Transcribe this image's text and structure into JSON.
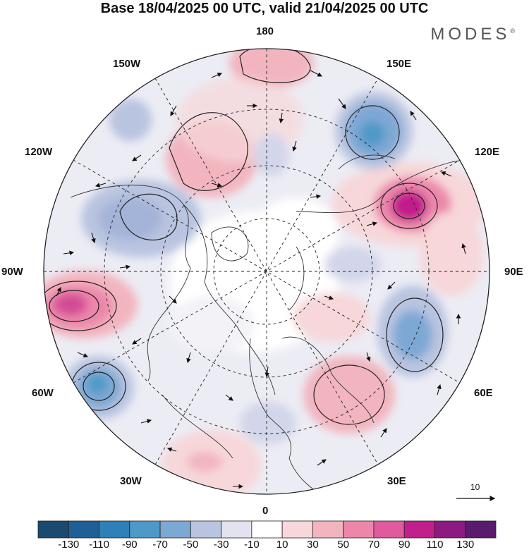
{
  "title": "Base 18/04/2025 00 UTC, valid 21/04/2025 00 UTC",
  "brand": "MODES",
  "brand_mark": "®",
  "longitude_labels": {
    "top": "180",
    "bottom": "0",
    "left": "90W",
    "right": "90E",
    "upper_left_1": "150W",
    "upper_left_2": "120W",
    "upper_right_1": "150E",
    "upper_right_2": "120E",
    "lower_left_1": "60W",
    "lower_left_2": "30W",
    "lower_right_1": "60E",
    "lower_right_2": "30E"
  },
  "reference_vector": {
    "label": "10"
  },
  "colorbar": {
    "ticks": [
      "-130",
      "-110",
      "-90",
      "-70",
      "-50",
      "-30",
      "-10",
      "10",
      "30",
      "50",
      "70",
      "90",
      "110",
      "130"
    ],
    "colors": [
      "#1a4a70",
      "#1f5f95",
      "#2f7fb8",
      "#4f99c9",
      "#7ea8d4",
      "#b9c4e0",
      "#e3e3f0",
      "#ffffff",
      "#f7d7d9",
      "#f2b5bf",
      "#ec87aa",
      "#e05a9e",
      "#c21e8c",
      "#8c1a80",
      "#5a1a6e"
    ]
  },
  "anomaly_centers": [
    {
      "name": "north-pacific-high",
      "sign": "positive"
    },
    {
      "name": "siberian-high",
      "sign": "positive"
    },
    {
      "name": "north-america-high",
      "sign": "positive"
    },
    {
      "name": "north-atlantic-low",
      "sign": "negative"
    },
    {
      "name": "bering-low",
      "sign": "negative"
    },
    {
      "name": "central-asia-low",
      "sign": "negative"
    },
    {
      "name": "europe-high",
      "sign": "positive"
    }
  ]
}
